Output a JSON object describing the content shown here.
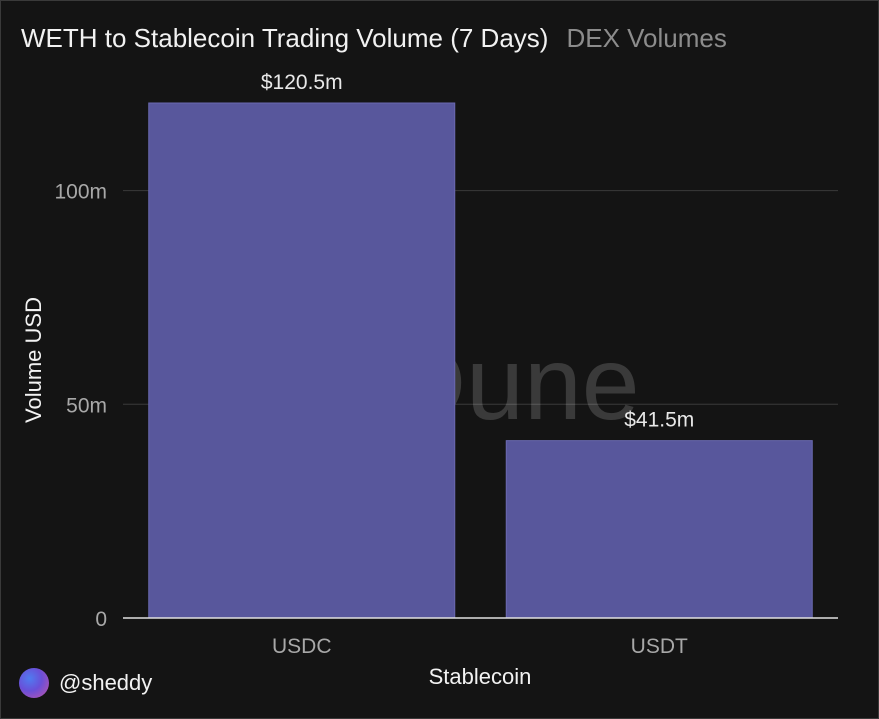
{
  "header": {
    "title": "WETH to Stablecoin Trading Volume (7 Days)",
    "subtitle": "DEX Volumes"
  },
  "watermark": {
    "text": "Dune"
  },
  "footer": {
    "author": "@sheddy"
  },
  "colors": {
    "bar": "#58579c",
    "background": "#141414",
    "grid": "#3a3a3a",
    "axis_text": "#a8a8a8"
  },
  "chart_data": {
    "type": "bar",
    "categories": [
      "USDC",
      "USDT"
    ],
    "values": [
      120.5,
      41.5
    ],
    "value_labels": [
      "$120.5m",
      "$41.5m"
    ],
    "xlabel": "Stablecoin",
    "ylabel": "Volume USD",
    "yticks": [
      0,
      50,
      100
    ],
    "ytick_labels": [
      "0",
      "50m",
      "100m"
    ],
    "ylim": [
      0,
      120.5
    ],
    "grid": true
  }
}
